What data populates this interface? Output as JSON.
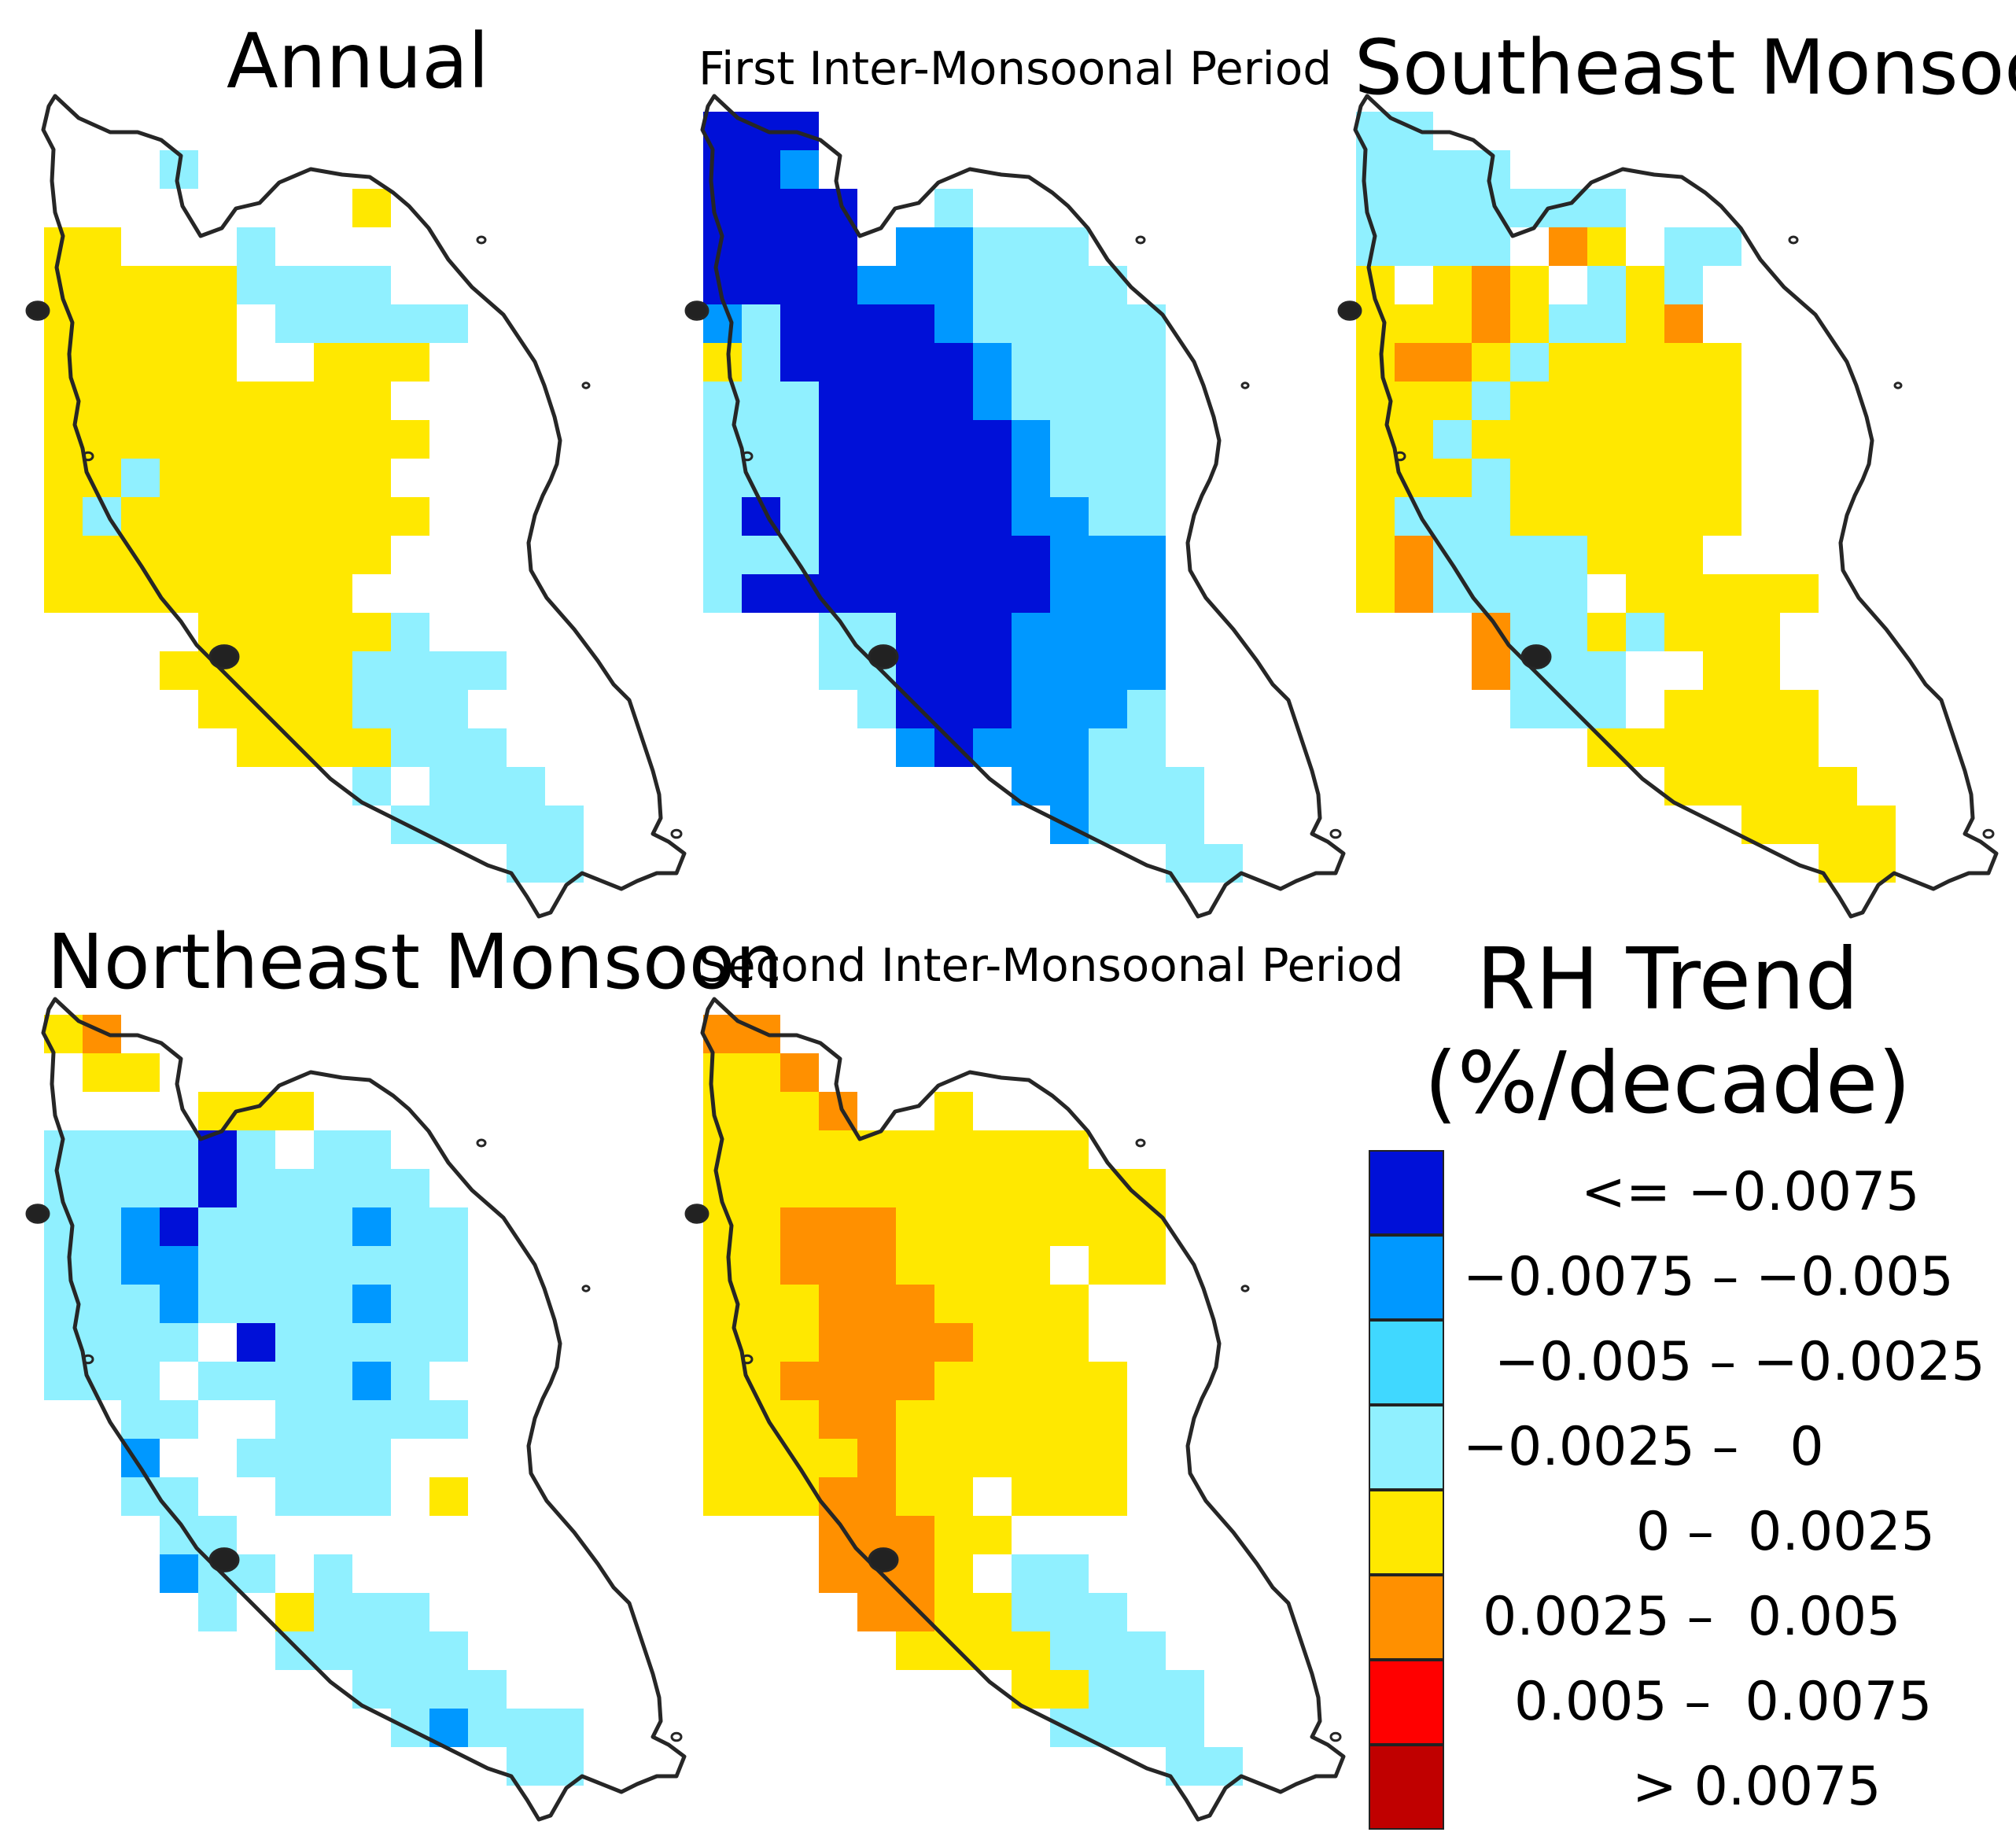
{
  "panels": [
    {
      "id": "annual",
      "title": "Annual",
      "row": 0,
      "col": 0,
      "grid": [
        "............",
        "...L........",
        "........Y...",
        "YY...L......",
        "YYYYYLLLL...",
        "YYYYY.LLLLL.",
        "YYYYY..YYY..",
        "YYYYYYYYY...",
        "YYYYYYYYYY..",
        "YYLYYYYYY...",
        "YLYYYYYYYY..",
        "YYYYYYYYY...",
        "YYYYYYYY....",
        "....YYYYYL..",
        "...YYYYYLLLL",
        "....YYYYLLL.",
        ".....YYYYLLL",
        "........L.LLL",
        ".........LLLLL",
        "............LL"
      ]
    },
    {
      "id": "first-inter-monsoonal",
      "title": "First Inter-Monsoonal Period",
      "row": 0,
      "col": 1,
      "grid": [
        "NNN.........",
        "NNM.........",
        "NNNN..L.....",
        "NNNN.MMLLL..",
        "NNNNMMMLLLL.",
        "MLNNNNMLLLLL",
        "YLNNNNNMLLLL",
        "LLLNNNNMLLLL",
        "LLLNNNNNMLLL",
        "LLLNNNNNMLLL",
        "LNLNNNNNMMLL",
        "LLLNNNNNNMMM",
        "LNNNNNNNNMMM",
        "...LLNNNMMMM",
        "...LLNNNMMMM",
        "....LNNNMMML",
        ".....MNMMMLL",
        "........MMLLL",
        ".........MLLL",
        "............LL"
      ]
    },
    {
      "id": "southeast-monsoon",
      "title": "Southeast Monsoon",
      "row": 0,
      "col": 2,
      "grid": [
        "LL..........",
        "LLLL........",
        "LLLLLLL.....",
        "LLLL.OY.LL..",
        "Y.YOY.LYL...",
        "YYYOYLLYO...",
        "YOOYLYYYYY..",
        "YYYLYYYYYY..",
        "YYLYYYYYYY..",
        "YYYLYYYYYY..",
        "YLLLYYYYYY..",
        "YOLLLLYYY...",
        "YOLLLL.YYYYY",
        "...OLLYLYYY.",
        "...OLLL..YY.",
        "....LLL.YYYY",
        "......YYYYYY",
        "........YYYYY",
        "..........YYYY",
        "............YY"
      ]
    },
    {
      "id": "northeast-monsoon",
      "title": "Northeast Monsoon",
      "row": 1,
      "col": 0,
      "grid": [
        "YO..........",
        ".YY.........",
        "....YYY.....",
        "LLLLNL.LL...",
        "LLLLNLLLLL..",
        "LLMNLLLLMLL.",
        "LLMMLLLLLLL.",
        "LLLMLLLLMLL.",
        "LLLL.NLLLLL.",
        "LLL.LLLLML..",
        "..LL..LLLLL.",
        "..M..LLLL...",
        "..LL..LLL.Y.",
        "...LL.......",
        "...MLL.L....",
        "....L.YLLL..",
        "......LLLLL.",
        "........LLLL.",
        ".........LMLLL",
        "............LL"
      ]
    },
    {
      "id": "second-inter-monsoonal",
      "title": "Second Inter-Monsoonal Period",
      "row": 1,
      "col": 1,
      "grid": [
        "OO..........",
        "YYO.........",
        "YYYO..Y.....",
        "YYYYYYYYYY..",
        "YYYYYYYYYYYY",
        "YYOOOYYYYYYY",
        "YYOOOYYYY.YY",
        "YYYOOOYYYY..",
        "YYYOOOOYYY..",
        "YYOOOOYYYYY.",
        "YYYOOYYYYYY.",
        "YYYYOYYYYYY.",
        "YYYOOYY.YYY.",
        "...OOOYY....",
        "...OOOY.LL..",
        "....OOYYLLL.",
        ".....YYYYLLL",
        "........YYLLL",
        ".........LLLL",
        "............LL"
      ]
    }
  ],
  "legend": {
    "title": "RH Trend\n(%/decade)",
    "items": [
      {
        "label": "<= −0.0075",
        "color": "#0010d8"
      },
      {
        "label": "−0.0075 – −0.005",
        "color": "#0098ff"
      },
      {
        "label": "−0.005 – −0.0025",
        "color": "#40d8ff"
      },
      {
        "label": "−0.0025 –   0",
        "color": "#90f0ff"
      },
      {
        "label": "0 –  0.0025",
        "color": "#ffe800"
      },
      {
        "label": "0.0025 –  0.005",
        "color": "#ff9000"
      },
      {
        "label": "0.005 –  0.0075",
        "color": "#ff0000"
      },
      {
        "label": "> 0.0075",
        "color": "#c00000"
      }
    ]
  },
  "cell_codes": {
    "N": 0,
    "M": 1,
    "L": 3,
    "Y": 4,
    "O": 5
  }
}
